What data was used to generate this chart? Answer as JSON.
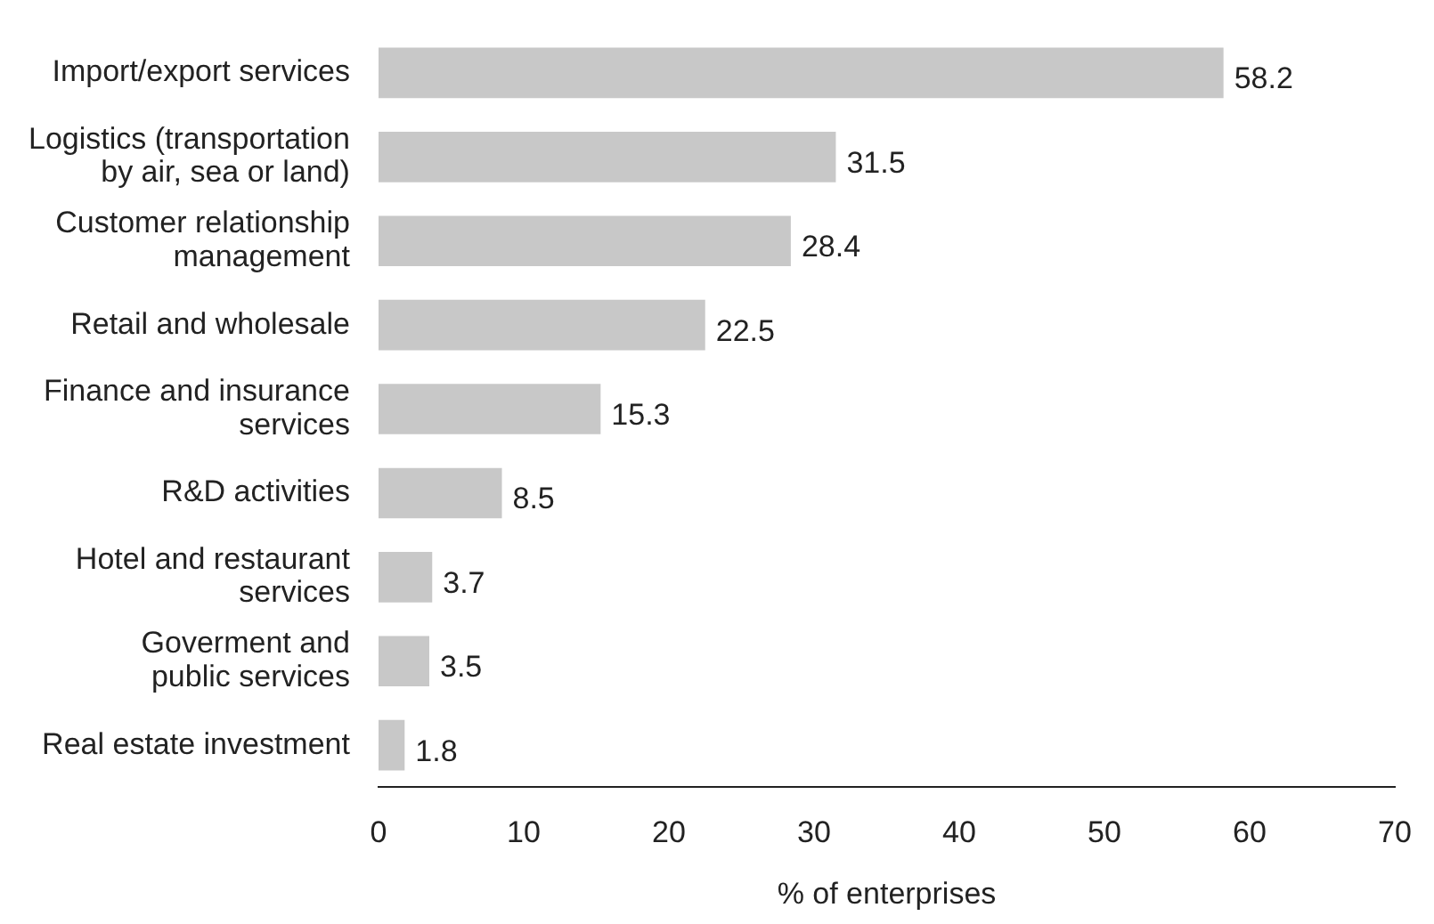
{
  "chart_data": {
    "type": "bar",
    "orientation": "horizontal",
    "xlabel": "% of enterprises",
    "categories": [
      "Import/export services",
      "Logistics (transportation\nby air, sea or land)",
      "Customer relationship\nmanagement",
      "Retail and wholesale",
      "Finance and insurance\nservices",
      "R&D activities",
      "Hotel and restaurant\nservices",
      "Goverment and\npublic services",
      "Real estate investment"
    ],
    "values": [
      58.2,
      31.5,
      28.4,
      22.5,
      15.3,
      8.5,
      3.7,
      3.5,
      1.8
    ],
    "color": "#c8c8c8",
    "xlim": [
      0,
      70
    ],
    "xticks": [
      0,
      10,
      20,
      30,
      40,
      50,
      60,
      70
    ],
    "data_labels": true,
    "grid": false,
    "legend": false
  }
}
